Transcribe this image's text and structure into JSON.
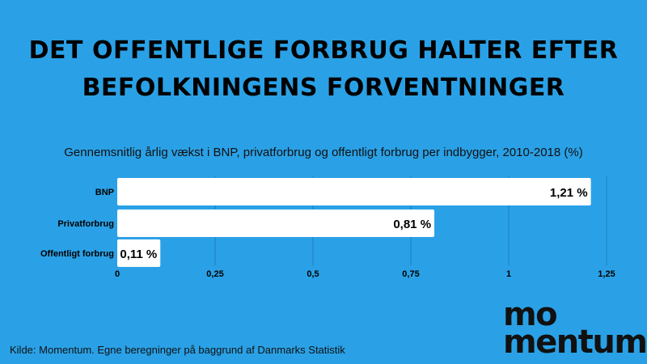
{
  "header": {
    "title_line1": "DET OFFENTLIGE FORBRUG HALTER EFTER",
    "title_line2": "BEFOLKNINGENS FORVENTNINGER"
  },
  "footer": {
    "source": "Kilde: Momentum. Egne beregninger på baggrund af Danmarks Statistik",
    "logo_line1": "mo",
    "logo_line2": "mentum"
  },
  "colors": {
    "background": "#2aa1e6",
    "bar": "#ffffff",
    "gridline": "#1e7fbf"
  },
  "chart_data": {
    "type": "bar",
    "orientation": "horizontal",
    "title": "Gennemsnitlig årlig vækst i BNP, privatforbrug og offentligt forbrug per indbygger, 2010-2018 (%)",
    "categories": [
      "BNP",
      "Privatforbrug",
      "Offentligt forbrug"
    ],
    "values": [
      1.21,
      0.81,
      0.11
    ],
    "value_labels": [
      "1,21 %",
      "0,81 %",
      "0,11 %"
    ],
    "xlim": [
      0,
      1.25
    ],
    "xticks": [
      0,
      0.25,
      0.5,
      0.75,
      1,
      1.25
    ],
    "xtick_labels": [
      "0",
      "0,25",
      "0,5",
      "0,75",
      "1",
      "1,25"
    ],
    "grid": true,
    "legend": "none"
  }
}
